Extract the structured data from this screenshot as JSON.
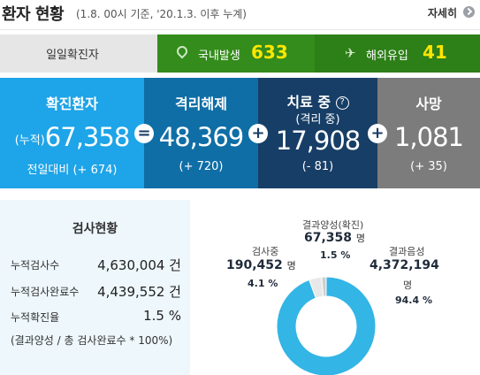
{
  "header": {
    "title": "환자 현황",
    "subtitle": "(1.8. 00시 기준, '20.1.3. 이후 누계)",
    "more_label": "자세히"
  },
  "daily": {
    "label": "일일확진자",
    "local_label": "국내발생",
    "local_value": "633",
    "overseas_label": "해외유입",
    "overseas_value": "41"
  },
  "stats": {
    "confirmed": {
      "label": "확진환자",
      "prefix": "(누적)",
      "value": "67,358",
      "delta": "전일대비 (+ 674)"
    },
    "released": {
      "label": "격리해제",
      "value": "48,369",
      "delta": "(+ 720)"
    },
    "treatment": {
      "label": "치료 중",
      "sub": "(격리 중)",
      "value": "17,908",
      "delta": "(- 81)",
      "help": "?"
    },
    "deaths": {
      "label": "사망",
      "value": "1,081",
      "delta": "(+ 35)"
    },
    "ops": {
      "minus": "=",
      "plus": "+"
    }
  },
  "tests": {
    "title": "검사현황",
    "rows": [
      {
        "label": "누적검사수",
        "value": "4,630,004 건"
      },
      {
        "label": "누적검사완료수",
        "value": "4,439,552 건"
      },
      {
        "label": "누적확진율",
        "value": "1.5 %"
      }
    ],
    "note": "(결과양성 / 총 검사완료수 * 100%)"
  },
  "donut": {
    "positive": {
      "label": "결과양성(확진)",
      "value": "67,358",
      "unit": "명",
      "pct": "1.5 %"
    },
    "testing": {
      "label": "검사중",
      "value": "190,452",
      "unit": "명",
      "pct": "4.1 %"
    },
    "negative": {
      "label": "결과음성",
      "value": "4,372,194",
      "unit": "명",
      "pct": "94.4 %"
    }
  },
  "chart_data": {
    "type": "pie",
    "categories": [
      "결과음성",
      "검사중",
      "결과양성(확진)"
    ],
    "values": [
      94.4,
      4.1,
      1.5
    ],
    "title": "",
    "colors": [
      "#33b5e5",
      "#e8e8e8",
      "#cfcfcf"
    ]
  },
  "colors": {
    "confirmed": "#1ea4e8",
    "released": "#0f6ea6",
    "treatment": "#173e66",
    "deaths": "#7c7c7c",
    "daily_green": "#338c1b",
    "highlight_yellow": "#ffe600"
  },
  "icons": {
    "local": "map-pin-icon",
    "overseas": "airplane-icon"
  }
}
